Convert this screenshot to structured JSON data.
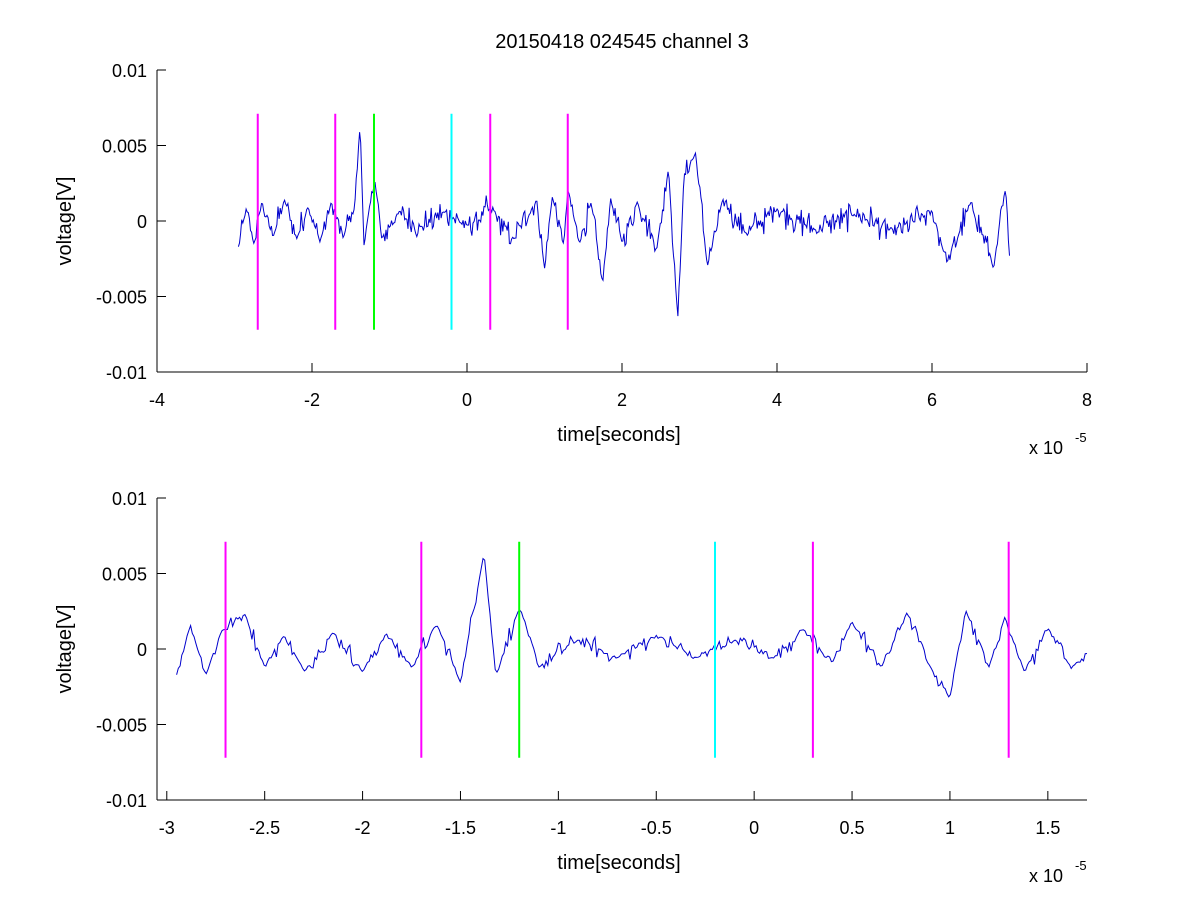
{
  "chart_data": [
    {
      "type": "line",
      "title": "20150418 024545 channel 3",
      "xlabel": "time[seconds]",
      "ylabel": "voltage[V]",
      "x_multiplier": "x 10",
      "x_multiplier_exp": "-5",
      "xlim": [
        -4,
        8
      ],
      "ylim": [
        -0.01,
        0.01
      ],
      "x_ticks": [
        "-4",
        "-2",
        "0",
        "2",
        "4",
        "6",
        "8"
      ],
      "x_tick_values": [
        -4,
        -2,
        0,
        2,
        4,
        6,
        8
      ],
      "y_ticks": [
        "0.01",
        "0.005",
        "0",
        "-0.005",
        "-0.01"
      ],
      "y_tick_values": [
        0.01,
        0.005,
        0,
        -0.005,
        -0.01
      ],
      "grid": false,
      "series": [
        {
          "color": "#0000cc",
          "x_start": -2.95,
          "x_end": 7.0,
          "points": [
            [
              -2.95,
              -0.0017
            ],
            [
              -2.85,
              0.0008
            ],
            [
              -2.75,
              -0.0015
            ],
            [
              -2.65,
              0.0012
            ],
            [
              -2.5,
              -0.001
            ],
            [
              -2.35,
              0.0014
            ],
            [
              -2.2,
              -0.0012
            ],
            [
              -2.05,
              0.001
            ],
            [
              -1.9,
              -0.0014
            ],
            [
              -1.75,
              0.0012
            ],
            [
              -1.6,
              -0.0011
            ],
            [
              -1.45,
              0.0009
            ],
            [
              -1.38,
              0.0064
            ],
            [
              -1.33,
              -0.0016
            ],
            [
              -1.25,
              0.0011
            ],
            [
              -1.19,
              0.0027
            ],
            [
              -1.1,
              -0.0012
            ],
            [
              -0.9,
              0.0005
            ],
            [
              -0.6,
              -0.0004
            ],
            [
              -0.3,
              0.0006
            ],
            [
              0.0,
              -0.0003
            ],
            [
              0.3,
              0.0008
            ],
            [
              0.6,
              -0.0012
            ],
            [
              0.9,
              0.0014
            ],
            [
              1.0,
              -0.0032
            ],
            [
              1.1,
              0.0016
            ],
            [
              1.25,
              -0.0015
            ],
            [
              1.3,
              0.002
            ],
            [
              1.45,
              -0.0014
            ],
            [
              1.6,
              0.0012
            ],
            [
              1.75,
              -0.0042
            ],
            [
              1.85,
              0.0015
            ],
            [
              2.0,
              -0.0014
            ],
            [
              2.2,
              0.0013
            ],
            [
              2.45,
              -0.0018
            ],
            [
              2.6,
              0.0035
            ],
            [
              2.72,
              -0.0065
            ],
            [
              2.8,
              0.003
            ],
            [
              2.95,
              0.0045
            ],
            [
              3.1,
              -0.003
            ],
            [
              3.3,
              0.0014
            ],
            [
              3.6,
              -0.0008
            ],
            [
              4.0,
              0.0008
            ],
            [
              4.5,
              -0.0006
            ],
            [
              5.0,
              0.0005
            ],
            [
              5.5,
              -0.0007
            ],
            [
              6.0,
              0.0006
            ],
            [
              6.2,
              -0.0027
            ],
            [
              6.5,
              0.0012
            ],
            [
              6.8,
              -0.003
            ],
            [
              6.95,
              0.0022
            ],
            [
              7.0,
              -0.0023
            ]
          ]
        }
      ],
      "markers": [
        {
          "x": -2.7,
          "y_range": [
            -0.0072,
            0.0071
          ],
          "color": "#ff00ff"
        },
        {
          "x": -1.7,
          "y_range": [
            -0.0072,
            0.0071
          ],
          "color": "#ff00ff"
        },
        {
          "x": -1.2,
          "y_range": [
            -0.0072,
            0.0071
          ],
          "color": "#00ff00"
        },
        {
          "x": -0.2,
          "y_range": [
            -0.0072,
            0.0071
          ],
          "color": "#00ffff"
        },
        {
          "x": 0.3,
          "y_range": [
            -0.0072,
            0.0071
          ],
          "color": "#ff00ff"
        },
        {
          "x": 1.3,
          "y_range": [
            -0.0072,
            0.0071
          ],
          "color": "#ff00ff"
        }
      ]
    },
    {
      "type": "line",
      "title": "",
      "xlabel": "time[seconds]",
      "ylabel": "voltage[V]",
      "x_multiplier": "x 10",
      "x_multiplier_exp": "-5",
      "xlim": [
        -3.05,
        1.7
      ],
      "ylim": [
        -0.01,
        0.01
      ],
      "x_ticks": [
        "-3",
        "-2.5",
        "-2",
        "-1.5",
        "-1",
        "-0.5",
        "0",
        "0.5",
        "1",
        "1.5"
      ],
      "x_tick_values": [
        -3,
        -2.5,
        -2,
        -1.5,
        -1,
        -0.5,
        0,
        0.5,
        1,
        1.5
      ],
      "y_ticks": [
        "0.01",
        "0.005",
        "0",
        "-0.005",
        "-0.01"
      ],
      "y_tick_values": [
        0.01,
        0.005,
        0,
        -0.005,
        -0.01
      ],
      "grid": false,
      "series": [
        {
          "color": "#0000cc",
          "x_start": -2.95,
          "x_end": 1.7,
          "points": [
            [
              -2.95,
              -0.0017
            ],
            [
              -2.88,
              0.0016
            ],
            [
              -2.8,
              -0.0017
            ],
            [
              -2.72,
              0.0012
            ],
            [
              -2.6,
              0.0023
            ],
            [
              -2.5,
              -0.0012
            ],
            [
              -2.4,
              0.0009
            ],
            [
              -2.3,
              -0.0015
            ],
            [
              -2.15,
              0.0011
            ],
            [
              -2.0,
              -0.0015
            ],
            [
              -1.88,
              0.001
            ],
            [
              -1.75,
              -0.0012
            ],
            [
              -1.62,
              0.0016
            ],
            [
              -1.5,
              -0.0022
            ],
            [
              -1.38,
              0.0064
            ],
            [
              -1.32,
              -0.0017
            ],
            [
              -1.2,
              0.0027
            ],
            [
              -1.1,
              -0.0012
            ],
            [
              -0.9,
              0.0006
            ],
            [
              -0.7,
              -0.0006
            ],
            [
              -0.5,
              0.0009
            ],
            [
              -0.3,
              -0.0006
            ],
            [
              -0.1,
              0.0006
            ],
            [
              0.1,
              -0.0006
            ],
            [
              0.25,
              0.0013
            ],
            [
              0.4,
              -0.0009
            ],
            [
              0.5,
              0.0018
            ],
            [
              0.65,
              -0.0012
            ],
            [
              0.78,
              0.0024
            ],
            [
              0.9,
              -0.0012
            ],
            [
              1.0,
              -0.0032
            ],
            [
              1.08,
              0.0026
            ],
            [
              1.2,
              -0.0012
            ],
            [
              1.28,
              0.0021
            ],
            [
              1.38,
              -0.0015
            ],
            [
              1.5,
              0.0014
            ],
            [
              1.62,
              -0.0013
            ],
            [
              1.7,
              -0.0003
            ]
          ]
        }
      ],
      "markers": [
        {
          "x": -2.7,
          "y_range": [
            -0.0072,
            0.0071
          ],
          "color": "#ff00ff"
        },
        {
          "x": -1.7,
          "y_range": [
            -0.0072,
            0.0071
          ],
          "color": "#ff00ff"
        },
        {
          "x": -1.2,
          "y_range": [
            -0.0072,
            0.0071
          ],
          "color": "#00ff00"
        },
        {
          "x": -0.2,
          "y_range": [
            -0.0072,
            0.0071
          ],
          "color": "#00ffff"
        },
        {
          "x": 0.3,
          "y_range": [
            -0.0072,
            0.0071
          ],
          "color": "#ff00ff"
        },
        {
          "x": 1.3,
          "y_range": [
            -0.0072,
            0.0071
          ],
          "color": "#ff00ff"
        }
      ]
    }
  ]
}
